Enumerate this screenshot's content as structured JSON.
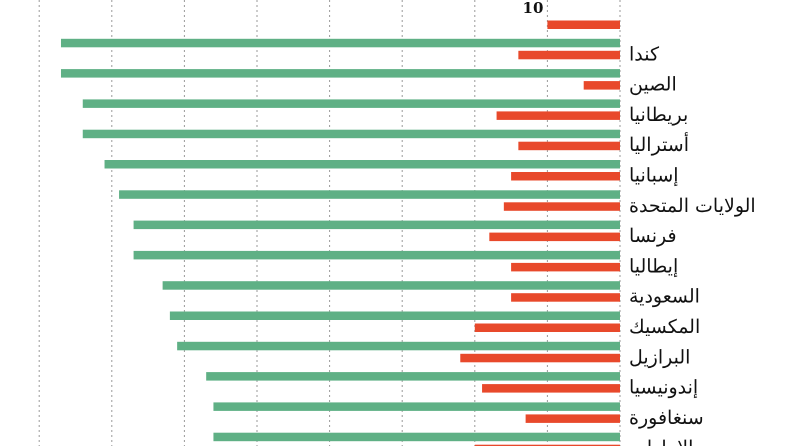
{
  "chart_data": {
    "type": "bar",
    "orientation": "horizontal",
    "direction": "right-to-left",
    "categories": [
      "",
      "كندا",
      "الصين",
      "بريطانيا",
      "أستراليا",
      "إسبانيا",
      "الولايات المتحدة",
      "فرنسا",
      "إيطاليا",
      "السعودية",
      "المكسيك",
      "البرازيل",
      "إندونيسيا",
      "سنغافورة",
      "الإمارات"
    ],
    "series": [
      {
        "color": "#5fb085",
        "values": [
          null,
          77,
          77,
          74,
          74,
          71,
          69,
          67,
          67,
          63,
          62,
          61,
          57,
          56,
          56
        ]
      },
      {
        "color": "#e8492b",
        "values": [
          10,
          14,
          5,
          17,
          14,
          15,
          16,
          18,
          15,
          15,
          20,
          22,
          19,
          13,
          20
        ]
      }
    ],
    "data_labels": [
      {
        "row": 0,
        "series": 1,
        "text": "10"
      }
    ],
    "grid": true,
    "grid_step": 10,
    "xlim": [
      0,
      86
    ]
  }
}
